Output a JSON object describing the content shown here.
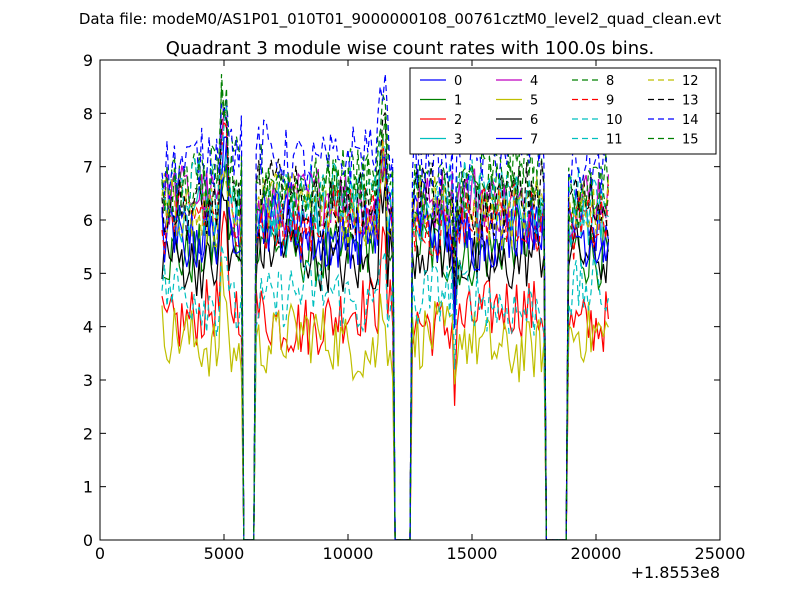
{
  "figure": {
    "suptitle": "Data file: modeM0/AS1P01_010T01_9000000108_00761cztM0_level2_quad_clean.evt"
  },
  "chart_data": {
    "type": "line",
    "title": "Quadrant 3 module wise count rates with 100.0s bins.",
    "xlabel": "",
    "ylabel": "",
    "x_offset_label": "+1.8553e8",
    "xlim": [
      0,
      25000
    ],
    "ylim": [
      0,
      9
    ],
    "xticks": [
      0,
      5000,
      10000,
      15000,
      20000,
      25000
    ],
    "yticks": [
      0,
      1,
      2,
      3,
      4,
      5,
      6,
      7,
      8,
      9
    ],
    "grid": false,
    "legend": {
      "placement": "top-right",
      "columns": 4
    },
    "x_range": [
      2500,
      20500
    ],
    "bin": 100,
    "gaps": [
      [
        5800,
        6200
      ],
      [
        11900,
        12500
      ],
      [
        18000,
        18800
      ]
    ],
    "series": [
      {
        "name": "0",
        "color": "#0000ff",
        "style": "solid",
        "level": 5.9
      },
      {
        "name": "1",
        "color": "#008000",
        "style": "solid",
        "level": 5.5
      },
      {
        "name": "2",
        "color": "#ff0000",
        "style": "solid",
        "level": 4.2
      },
      {
        "name": "3",
        "color": "#00bfbf",
        "style": "solid",
        "level": 6.1
      },
      {
        "name": "4",
        "color": "#bf00bf",
        "style": "solid",
        "level": 6.3
      },
      {
        "name": "5",
        "color": "#bfbf00",
        "style": "solid",
        "level": 3.7
      },
      {
        "name": "6",
        "color": "#000000",
        "style": "solid",
        "level": 5.3
      },
      {
        "name": "7",
        "color": "#0000ff",
        "style": "solid",
        "level": 5.8
      },
      {
        "name": "8",
        "color": "#008000",
        "style": "dashed",
        "level": 6.8
      },
      {
        "name": "9",
        "color": "#ff0000",
        "style": "dashed",
        "level": 6.0
      },
      {
        "name": "10",
        "color": "#00bfbf",
        "style": "dashed",
        "level": 6.4
      },
      {
        "name": "11",
        "color": "#00bfbf",
        "style": "dashed",
        "level": 4.5
      },
      {
        "name": "12",
        "color": "#bfbf00",
        "style": "dashed",
        "level": 6.2
      },
      {
        "name": "13",
        "color": "#000000",
        "style": "dashed",
        "level": 6.4
      },
      {
        "name": "14",
        "color": "#0000ff",
        "style": "dashed",
        "level": 7.2
      },
      {
        "name": "15",
        "color": "#008000",
        "style": "dashed",
        "level": 6.5
      }
    ]
  }
}
